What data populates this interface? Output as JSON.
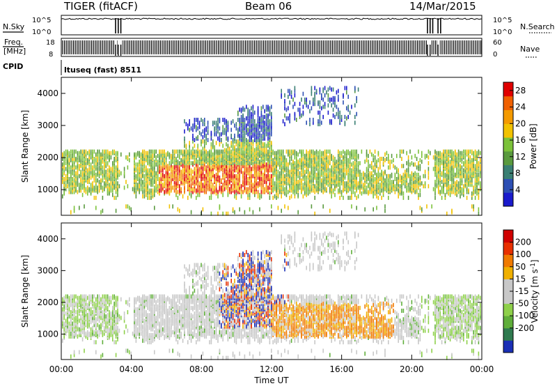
{
  "header": {
    "title": "TIGER (fitACF)",
    "beam": "Beam 06",
    "date": "14/Mar/2015"
  },
  "params": {
    "nsky_label": "N.Sky",
    "nsearch_label": "N.Search",
    "left_ticks": [
      "10^5",
      "10^0"
    ],
    "right_ticks": [
      "10^5",
      "10^0"
    ],
    "freq_label_line1": "Freq.",
    "freq_label_line2": "[MHz]",
    "freq_ticks": [
      "18",
      "8"
    ],
    "nave_label": "Nave",
    "nave_ticks": [
      "60",
      "0"
    ],
    "cpid_label": "CPID",
    "cpid_text": "ltuseq (fast) 8511"
  },
  "colors": {
    "power_scale": [
      "#1a1acc",
      "#2d4fb4",
      "#3a7f73",
      "#5a9a3e",
      "#7cc23a",
      "#f2c200",
      "#f49a00",
      "#f06000",
      "#e00000"
    ],
    "velocity_scale": [
      "#1a2fb5",
      "#2f7a4f",
      "#5fae3a",
      "#8ed04a",
      "#c8c8c8",
      "#c8c8c8",
      "#f0b000",
      "#f07a00",
      "#e83000",
      "#d00000"
    ],
    "gray": "#c8c8c8"
  },
  "chart_data": [
    {
      "type": "heatmap",
      "name": "power",
      "ylabel": "Slant Range [km]",
      "yticks": [
        "1000",
        "2000",
        "3000",
        "4000"
      ],
      "ylim": [
        200,
        4500
      ],
      "colorbar_label": "Power [dB]",
      "colorbar_ticks": [
        "4",
        "8",
        "12",
        "16",
        "20",
        "24",
        "28"
      ],
      "colorbar_range": [
        0,
        30
      ]
    },
    {
      "type": "heatmap",
      "name": "velocity",
      "ylabel": "Slant Range [km]",
      "yticks": [
        "1000",
        "2000",
        "3000",
        "4000"
      ],
      "ylim": [
        200,
        4500
      ],
      "colorbar_label": "Velocity [m s^-1]",
      "colorbar_ticks": [
        "200",
        "100",
        "50",
        "15",
        "-15",
        "-50",
        "-100",
        "-200"
      ]
    }
  ],
  "xaxis": {
    "label": "Time UT",
    "ticks": [
      "00:00",
      "04:00",
      "08:00",
      "12:00",
      "16:00",
      "20:00",
      "00:00"
    ],
    "range_hours": [
      0,
      24
    ]
  }
}
